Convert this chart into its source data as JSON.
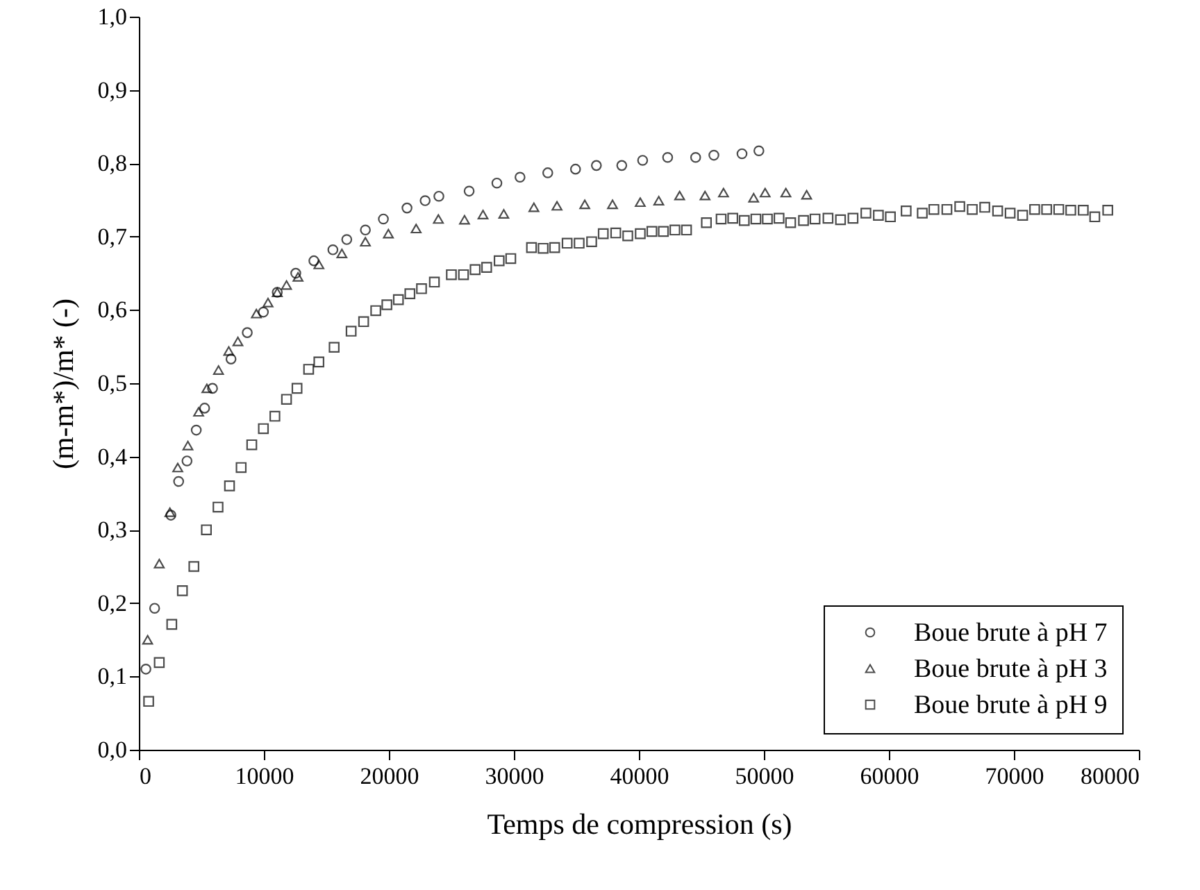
{
  "chart_data": {
    "type": "scatter",
    "xlabel": "Temps de compression (s)",
    "ylabel": "(m-m*)/m* (-)",
    "xlim": [
      0,
      80000
    ],
    "xticks": [
      0,
      10000,
      20000,
      30000,
      40000,
      50000,
      60000,
      70000,
      80000
    ],
    "ylim": [
      0,
      1
    ],
    "yticks": [
      {
        "value": 0,
        "label": "0,0"
      },
      {
        "value": 0.1,
        "label": "0,1"
      },
      {
        "value": 0.2,
        "label": "0,2"
      },
      {
        "value": 0.3,
        "label": "0,3"
      },
      {
        "value": 0.4,
        "label": "0,4"
      },
      {
        "value": 0.5,
        "label": "0,5"
      },
      {
        "value": 0.6,
        "label": "0,6"
      },
      {
        "value": 0.7,
        "label": "0,7"
      },
      {
        "value": 0.8,
        "label": "0,8"
      },
      {
        "value": 0.9,
        "label": "0,9"
      },
      {
        "value": 1,
        "label": "1,0"
      }
    ],
    "grid": false,
    "legend": "bottom right",
    "series": [
      {
        "name": "Boue brute à pH 7",
        "color": "#000000",
        "marker": "circle",
        "x": [
          560,
          1260,
          2560,
          3180,
          3850,
          4590,
          5260,
          5890,
          7370,
          8670,
          9960,
          11070,
          12550,
          14000,
          15520,
          16630,
          18120,
          19560,
          21450,
          22900,
          24000,
          26420,
          28640,
          30490,
          32710,
          34930,
          36600,
          38630,
          40300,
          42300,
          44540,
          46000,
          48250,
          49600
        ],
        "values": [
          0.11,
          0.193,
          0.32,
          0.366,
          0.394,
          0.436,
          0.466,
          0.493,
          0.533,
          0.569,
          0.597,
          0.624,
          0.65,
          0.667,
          0.682,
          0.696,
          0.709,
          0.724,
          0.739,
          0.749,
          0.755,
          0.762,
          0.773,
          0.781,
          0.787,
          0.792,
          0.797,
          0.797,
          0.804,
          0.808,
          0.808,
          0.811,
          0.813,
          0.817
        ]
      },
      {
        "name": "Boue brute à pH 3",
        "color": "#000000",
        "marker": "triangle",
        "x": [
          700,
          1630,
          2480,
          3110,
          3920,
          4780,
          5440,
          6370,
          7190,
          7920,
          9400,
          10330,
          11070,
          11810,
          12730,
          14400,
          16240,
          18120,
          19960,
          22180,
          23960,
          26050,
          27530,
          29190,
          31600,
          33450,
          35670,
          37890,
          40110,
          41590,
          43260,
          45290,
          46770,
          49180,
          50100,
          51760,
          53420
        ],
        "values": [
          0.15,
          0.254,
          0.324,
          0.385,
          0.415,
          0.461,
          0.493,
          0.518,
          0.544,
          0.557,
          0.595,
          0.61,
          0.624,
          0.634,
          0.645,
          0.662,
          0.677,
          0.693,
          0.704,
          0.711,
          0.724,
          0.723,
          0.73,
          0.731,
          0.74,
          0.742,
          0.744,
          0.744,
          0.747,
          0.749,
          0.756,
          0.756,
          0.76,
          0.753,
          0.76,
          0.76,
          0.757
        ]
      },
      {
        "name": "Boue brute à pH 9",
        "color": "#000000",
        "marker": "square",
        "x": [
          780,
          1630,
          2630,
          3480,
          4400,
          5400,
          6330,
          7250,
          8180,
          9030,
          9960,
          10880,
          11810,
          12650,
          13580,
          14400,
          15620,
          16980,
          17980,
          18950,
          19840,
          20760,
          21680,
          22610,
          23640,
          25000,
          25970,
          26900,
          27820,
          28820,
          29750,
          31410,
          32340,
          33260,
          34260,
          35220,
          36220,
          37150,
          38150,
          39110,
          40110,
          41040,
          41960,
          42880,
          43810,
          45400,
          46580,
          47510,
          48430,
          49360,
          50280,
          51210,
          52140,
          53170,
          54090,
          55130,
          56130,
          57130,
          58160,
          59160,
          60120,
          61380,
          62670,
          63600,
          64640,
          65670,
          66670,
          67670,
          68700,
          69700,
          70700,
          71660,
          72620,
          73590,
          74550,
          75550,
          76470,
          77510
        ],
        "values": [
          0.066,
          0.119,
          0.171,
          0.217,
          0.25,
          0.3,
          0.331,
          0.36,
          0.385,
          0.416,
          0.438,
          0.455,
          0.478,
          0.493,
          0.519,
          0.529,
          0.549,
          0.571,
          0.584,
          0.599,
          0.607,
          0.614,
          0.622,
          0.629,
          0.638,
          0.648,
          0.648,
          0.655,
          0.658,
          0.667,
          0.67,
          0.685,
          0.684,
          0.685,
          0.691,
          0.691,
          0.693,
          0.704,
          0.705,
          0.701,
          0.704,
          0.707,
          0.707,
          0.709,
          0.709,
          0.719,
          0.724,
          0.725,
          0.722,
          0.724,
          0.724,
          0.725,
          0.719,
          0.722,
          0.724,
          0.725,
          0.723,
          0.725,
          0.732,
          0.729,
          0.727,
          0.735,
          0.732,
          0.737,
          0.737,
          0.741,
          0.737,
          0.74,
          0.735,
          0.732,
          0.729,
          0.737,
          0.737,
          0.737,
          0.736,
          0.736,
          0.727,
          0.736
        ]
      }
    ]
  }
}
